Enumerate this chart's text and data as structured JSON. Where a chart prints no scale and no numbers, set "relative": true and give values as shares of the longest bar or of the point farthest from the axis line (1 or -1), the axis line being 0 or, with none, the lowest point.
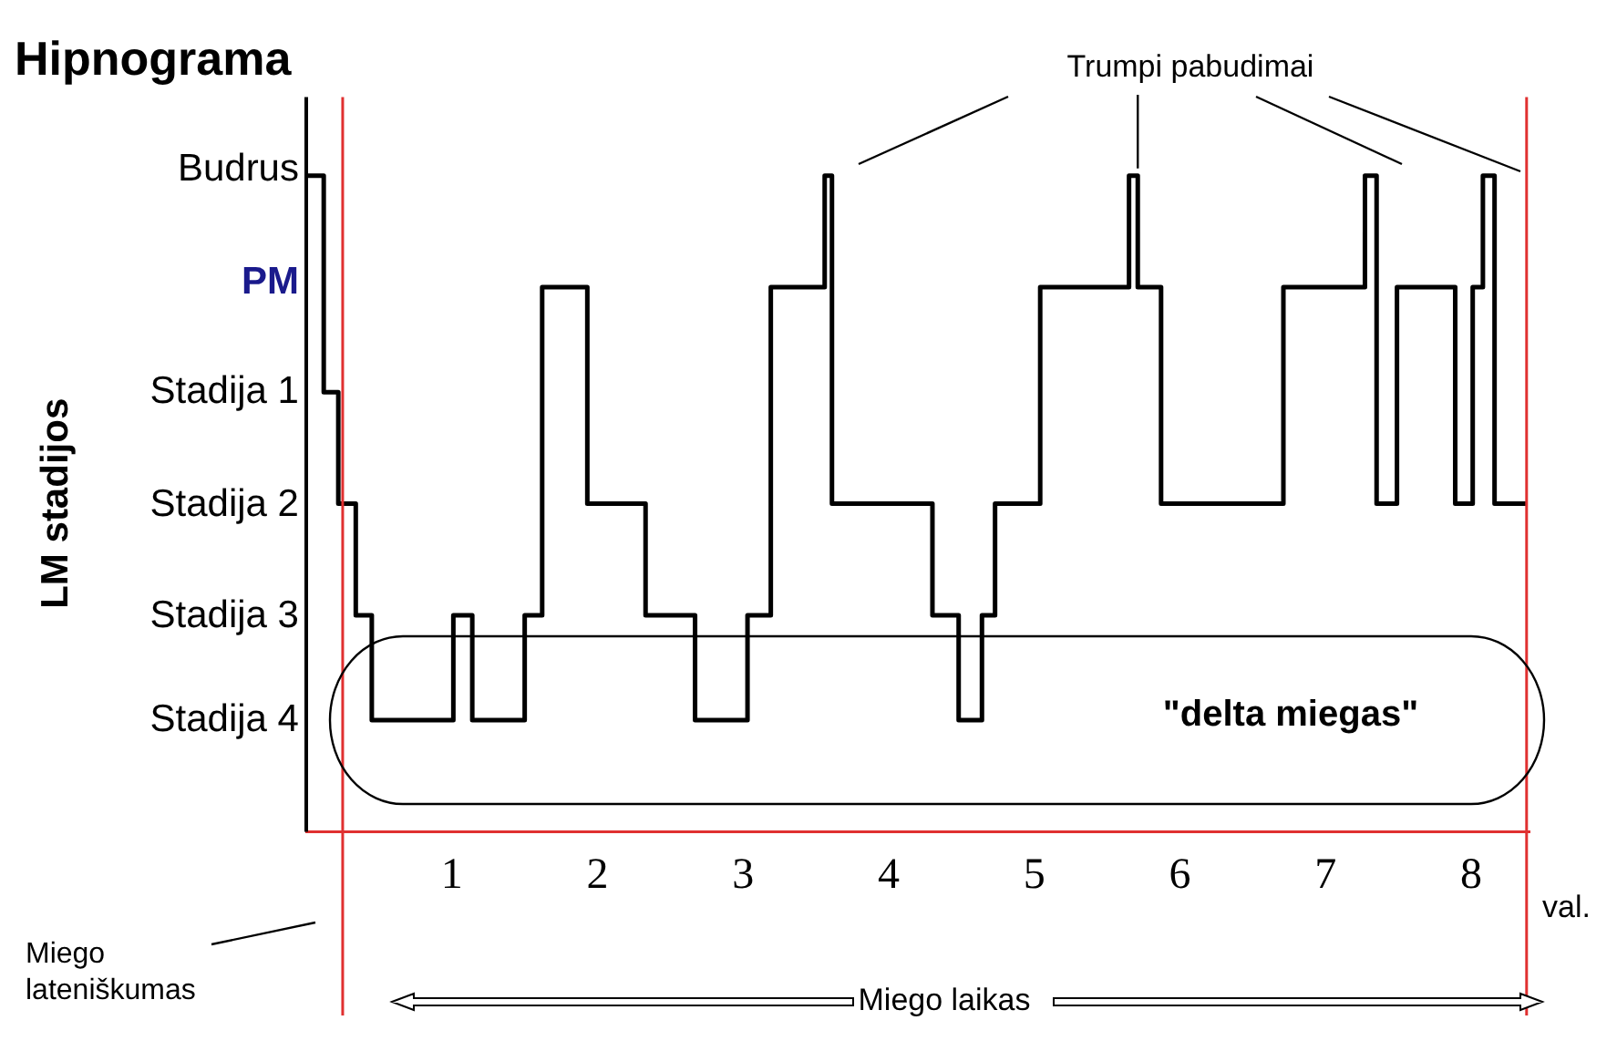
{
  "chart_data": {
    "type": "step",
    "title": "Hipnograma",
    "xlabel": "val.",
    "relative": true,
    "series": [
      {
        "color": "#000000",
        "x": [
          0,
          0.12,
          0.22,
          0.34,
          0.45,
          1.01,
          1.14,
          1.5,
          1.62,
          1.93,
          2.33,
          2.67,
          3.03,
          3.19,
          3.56,
          3.61,
          4.3,
          4.48,
          4.64,
          4.73,
          5.04,
          5.65,
          5.71,
          5.87,
          6.71,
          7.27,
          7.35,
          7.49,
          7.89,
          8.01,
          8.08,
          8.16,
          8.38
        ],
        "values": [
          1,
          0.67,
          0.5,
          0.33,
          0.17,
          0.33,
          0.17,
          0.33,
          0.83,
          0.5,
          0.33,
          0.17,
          0.33,
          0.83,
          1,
          0.5,
          0.33,
          0.17,
          0.33,
          0.5,
          0.83,
          1,
          0.83,
          0.5,
          0.83,
          1,
          0.5,
          0.83,
          0.5,
          0.83,
          1,
          0.5,
          0.5
        ]
      }
    ],
    "xlim": [
      0,
      8.4
    ],
    "xticks": [
      1,
      2,
      3,
      4,
      5,
      6,
      7,
      8
    ],
    "ref_lines": [
      {
        "axis": "x",
        "value": 0.25,
        "color": "#e03030"
      },
      {
        "axis": "x",
        "value": 8.38,
        "color": "#e03030"
      }
    ],
    "annotations": [
      {
        "text": "Trumpi pabudimai",
        "x": 5.71,
        "y": 1
      },
      "\"delta miegas\"",
      "Miego lateniškumas",
      "Miego laikas",
      "Budrus",
      "PM",
      "Stadija 1",
      "Stadija 2",
      "Stadija 3",
      "Stadija 4",
      "LM stadijos"
    ],
    "grid": false,
    "legend": false,
    "marker": "none",
    "line_style": "solid"
  }
}
